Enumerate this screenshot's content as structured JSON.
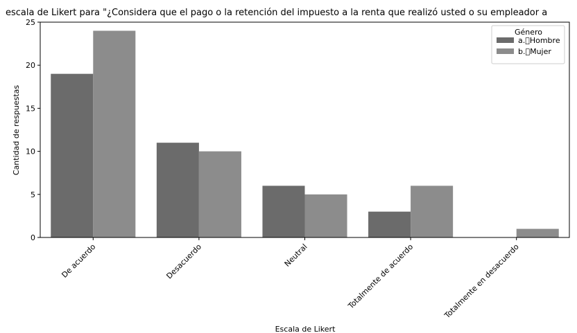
{
  "chart_data": {
    "type": "bar",
    "title": "escala de Likert para \"¿Considera que el pago o la retención del impuesto a la renta que realizó usted o su empleador a",
    "xlabel": "Escala de Likert",
    "ylabel": "Cantidad de respuestas",
    "categories": [
      "De acuerdo",
      "Desacuerdo",
      "Neutral",
      "Totalmente de acuerdo",
      "Totalmente en desacuerdo"
    ],
    "series": [
      {
        "name": "a.\u0000Hombre",
        "values": [
          19,
          11,
          6,
          3,
          0
        ],
        "color": "#6b6b6b"
      },
      {
        "name": "b.\u0000Mujer",
        "values": [
          24,
          10,
          5,
          6,
          1
        ],
        "color": "#8c8c8c"
      }
    ],
    "ylim": [
      0,
      25
    ],
    "yticks": [
      0,
      5,
      10,
      15,
      20,
      25
    ],
    "legend": {
      "title": "Género",
      "position": "top-right"
    },
    "grid": false
  }
}
